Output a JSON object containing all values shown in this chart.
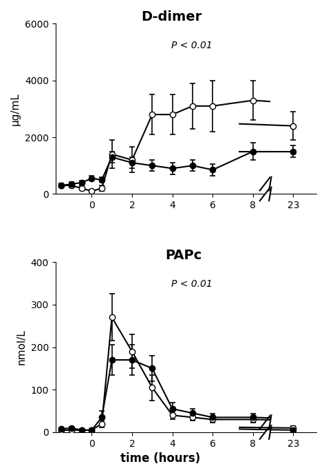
{
  "ddimer": {
    "title": "D-dimer",
    "pvalue": "P < 0.01",
    "ylabel": "μg/mL",
    "ylim": [
      0,
      6000
    ],
    "yticks": [
      0,
      2000,
      4000,
      6000
    ],
    "open_x": [
      -1.5,
      -1,
      -0.5,
      0,
      0.5,
      1,
      2,
      3,
      4,
      5,
      6,
      8
    ],
    "open_y": [
      300,
      300,
      200,
      100,
      200,
      1400,
      1200,
      2800,
      2800,
      3100,
      3100,
      3300
    ],
    "open_yerr": [
      80,
      80,
      80,
      50,
      100,
      500,
      450,
      700,
      700,
      800,
      900,
      700
    ],
    "open_x23": [
      23
    ],
    "open_y23": [
      2400
    ],
    "open_yerr23": [
      500
    ],
    "filled_x": [
      -1.5,
      -1,
      -0.5,
      0,
      0.5,
      1,
      2,
      3,
      4,
      5,
      6,
      8
    ],
    "filled_y": [
      300,
      350,
      400,
      550,
      500,
      1300,
      1100,
      1000,
      900,
      1000,
      850,
      1500
    ],
    "filled_yerr": [
      80,
      80,
      80,
      80,
      80,
      200,
      200,
      200,
      200,
      200,
      200,
      300
    ],
    "filled_x23": [
      23
    ],
    "filled_y23": [
      1500
    ],
    "filled_yerr23": [
      200
    ],
    "connector_open": [
      8,
      23,
      3300,
      2400
    ],
    "connector_filled": [
      8,
      23,
      1500,
      1500
    ]
  },
  "papc": {
    "title": "PAPc",
    "pvalue": "P < 0.01",
    "ylabel": "nmol/L",
    "xlabel": "time (hours)",
    "ylim": [
      0,
      400
    ],
    "yticks": [
      0,
      100,
      200,
      300,
      400
    ],
    "open_x": [
      -1.5,
      -1,
      -0.5,
      0,
      0.5,
      1,
      2,
      3,
      4,
      5,
      6,
      8
    ],
    "open_y": [
      5,
      5,
      5,
      5,
      20,
      270,
      190,
      105,
      40,
      35,
      30,
      30
    ],
    "open_yerr": [
      2,
      2,
      2,
      2,
      8,
      55,
      40,
      30,
      10,
      8,
      8,
      8
    ],
    "open_x23": [
      23
    ],
    "open_y23": [
      10
    ],
    "open_yerr23": [
      5
    ],
    "filled_x": [
      -1.5,
      -1,
      -0.5,
      0,
      0.5,
      1,
      2,
      3,
      4,
      5,
      6,
      8
    ],
    "filled_y": [
      8,
      10,
      5,
      5,
      35,
      170,
      170,
      150,
      55,
      45,
      35,
      35
    ],
    "filled_yerr": [
      3,
      3,
      3,
      3,
      15,
      35,
      35,
      30,
      15,
      10,
      8,
      8
    ],
    "filled_x23": [
      23
    ],
    "filled_y23": [
      5
    ],
    "filled_yerr23": [
      3
    ],
    "connector_open": [
      8,
      23,
      30,
      10
    ],
    "connector_filled": [
      8,
      23,
      35,
      5
    ]
  },
  "bg_color": "#ffffff",
  "line_color": "#000000",
  "marker_size": 6,
  "line_width": 1.5,
  "capsize": 3,
  "elinewidth": 1.2
}
